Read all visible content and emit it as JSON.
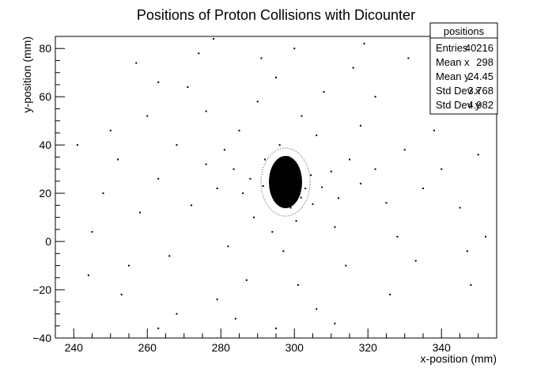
{
  "chart_data": {
    "type": "scatter",
    "title": "Positions of Proton Collisions with Dicounter",
    "xlabel": "x-position (mm)",
    "ylabel": "y-position (mm)",
    "xlim": [
      235,
      355
    ],
    "ylim": [
      -40,
      85
    ],
    "x_ticks": [
      240,
      260,
      280,
      300,
      320,
      340
    ],
    "y_ticks": [
      -40,
      -20,
      0,
      20,
      40,
      60,
      80
    ],
    "x_tick_labels": [
      "240",
      "260",
      "280",
      "300",
      "320",
      "340"
    ],
    "y_tick_labels": [
      "−40",
      "−20",
      "0",
      "20",
      "40",
      "60",
      "80"
    ],
    "grid": false,
    "legend": "none",
    "series": [
      {
        "points": [
          [
            298,
            24.5
          ],
          [
            296.5,
            25.8
          ],
          [
            299.2,
            22.6
          ],
          [
            297.4,
            27.4
          ],
          [
            300.3,
            24.1
          ],
          [
            295.8,
            21.9
          ],
          [
            298.9,
            28.6
          ],
          [
            301.1,
            26.2
          ],
          [
            294.9,
            24.8
          ],
          [
            297.9,
            19.8
          ],
          [
            303.0,
            22.0
          ],
          [
            293.5,
            28.0
          ],
          [
            299.8,
            31.5
          ],
          [
            296.0,
            17.5
          ],
          [
            304.5,
            27.5
          ],
          [
            291.5,
            23.0
          ],
          [
            301.8,
            18.2
          ],
          [
            295.0,
            31.2
          ],
          [
            288.0,
            26.0
          ],
          [
            307.5,
            22.5
          ],
          [
            298.5,
            35.0
          ],
          [
            299.0,
            14.0
          ],
          [
            286.0,
            20.0
          ],
          [
            310.0,
            29.0
          ],
          [
            292.0,
            34.0
          ],
          [
            305.0,
            15.5
          ],
          [
            283.5,
            30.0
          ],
          [
            312.0,
            18.0
          ],
          [
            296.0,
            40.0
          ],
          [
            300.5,
            8.5
          ],
          [
            281.0,
            38.0
          ],
          [
            315.0,
            34.0
          ],
          [
            289.0,
            10.0
          ],
          [
            318.0,
            24.0
          ],
          [
            279.0,
            22.0
          ],
          [
            306.0,
            44.0
          ],
          [
            294.0,
            4.0
          ],
          [
            322.0,
            30.0
          ],
          [
            276.0,
            32.0
          ],
          [
            311.0,
            6.0
          ],
          [
            285.0,
            46.0
          ],
          [
            325.0,
            16.0
          ],
          [
            272.0,
            15.0
          ],
          [
            302.0,
            52.0
          ],
          [
            297.0,
            -4.0
          ],
          [
            330.0,
            38.0
          ],
          [
            268.0,
            40.0
          ],
          [
            318.0,
            48.0
          ],
          [
            282.0,
            -2.0
          ],
          [
            335.0,
            22.0
          ],
          [
            263.0,
            26.0
          ],
          [
            290.0,
            58.0
          ],
          [
            314.0,
            -10.0
          ],
          [
            340.0,
            30.0
          ],
          [
            258.0,
            12.0
          ],
          [
            308.0,
            62.0
          ],
          [
            276.0,
            54.0
          ],
          [
            328.0,
            2.0
          ],
          [
            266.0,
            -6.0
          ],
          [
            345.0,
            14.0
          ],
          [
            252.0,
            34.0
          ],
          [
            295.0,
            68.0
          ],
          [
            301.0,
            -18.0
          ],
          [
            338.0,
            46.0
          ],
          [
            271.0,
            64.0
          ],
          [
            322.0,
            60.0
          ],
          [
            287.0,
            -16.0
          ],
          [
            248.0,
            20.0
          ],
          [
            350.0,
            36.0
          ],
          [
            260.0,
            52.0
          ],
          [
            333.0,
            -8.0
          ],
          [
            279.0,
            -24.0
          ],
          [
            316.0,
            72.0
          ],
          [
            255.0,
            -10.0
          ],
          [
            343.0,
            56.0
          ],
          [
            291.0,
            76.0
          ],
          [
            306.0,
            -28.0
          ],
          [
            263.0,
            66.0
          ],
          [
            347.0,
            -4.0
          ],
          [
            250.0,
            46.0
          ],
          [
            326.0,
            -22.0
          ],
          [
            274.0,
            78.0
          ],
          [
            300.0,
            80.0
          ],
          [
            253.0,
            -22.0
          ],
          [
            339.0,
            68.0
          ],
          [
            284.0,
            -32.0
          ],
          [
            311.0,
            -34.0
          ],
          [
            245.0,
            4.0
          ],
          [
            352.0,
            60.0
          ],
          [
            268.0,
            -30.0
          ],
          [
            331.0,
            76.0
          ],
          [
            257.0,
            74.0
          ],
          [
            241.0,
            40.0
          ],
          [
            348.0,
            -18.0
          ],
          [
            295.0,
            -36.0
          ],
          [
            319.0,
            82.0
          ],
          [
            263.0,
            -36.0
          ],
          [
            244.0,
            -14.0
          ],
          [
            352.0,
            2.0
          ],
          [
            278.0,
            84.0
          ]
        ]
      }
    ],
    "stats_box": {
      "title": "positions",
      "rows": [
        {
          "label": "Entries",
          "value": "40216"
        },
        {
          "label": "Mean x",
          "value": "298"
        },
        {
          "label": "Mean y",
          "value": "24.45"
        },
        {
          "label": "Std Dev x",
          "value": "3.768"
        },
        {
          "label": "Std Dev y",
          "value": "4.982"
        }
      ]
    }
  }
}
